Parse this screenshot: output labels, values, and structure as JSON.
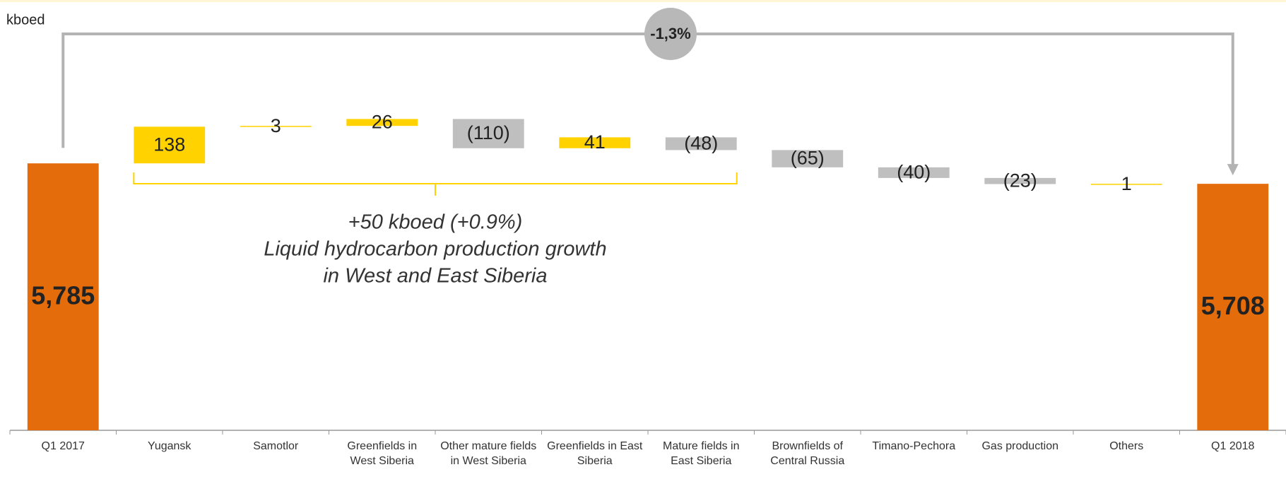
{
  "chart_data": {
    "type": "waterfall",
    "unit_label": "kboed",
    "categories": [
      "Q1 2017",
      "Yugansk",
      "Samotlor",
      "Greenfields in West Siberia",
      "Other mature fields in West Siberia",
      "Greenfields in East Siberia",
      "Mature fields in East Siberia",
      "Brownfields of Central Russia",
      "Timano-Pechora",
      "Gas production",
      "Others",
      "Q1 2018"
    ],
    "values": [
      5785,
      138,
      3,
      26,
      -110,
      41,
      -48,
      -65,
      -40,
      -23,
      1,
      5708
    ],
    "value_labels": [
      "5,785",
      "138",
      "3",
      "26",
      "(110)",
      "41",
      "(48)",
      "(65)",
      "(40)",
      "(23)",
      "1",
      "5,708"
    ],
    "is_total": [
      true,
      false,
      false,
      false,
      false,
      false,
      false,
      false,
      false,
      false,
      false,
      true
    ],
    "colors": [
      "#e46c0a",
      "#ffd200",
      "#ffd200",
      "#ffd200",
      "#bfbfbf",
      "#ffd200",
      "#bfbfbf",
      "#bfbfbf",
      "#bfbfbf",
      "#bfbfbf",
      "#ffd200",
      "#e46c0a"
    ],
    "ylim": [
      4780,
      6400
    ],
    "change_label": "-1,3%",
    "annotation": [
      "+50 kboed (+0.9%)",
      "Liquid hydrocarbon production growth",
      "in West and East Siberia"
    ]
  }
}
